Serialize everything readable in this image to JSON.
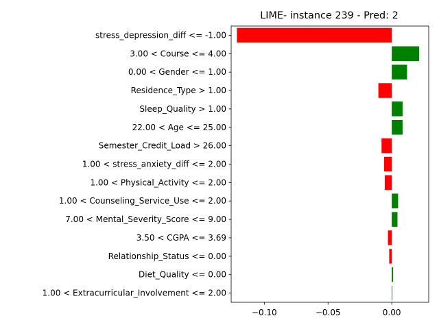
{
  "chart_data": {
    "type": "bar",
    "orientation": "horizontal",
    "title": "LIME- instance 239 - Pred: 2",
    "xlabel": "",
    "ylabel": "",
    "xlim": [
      -0.126,
      0.029
    ],
    "xticks": [
      -0.1,
      -0.05,
      0.0
    ],
    "xtick_labels": [
      "−0.10",
      "−0.05",
      "0.00"
    ],
    "grid": false,
    "colors": {
      "positive": "#008000",
      "negative": "#ff0000"
    },
    "categories": [
      "stress_depression_diff <= -1.00",
      "3.00 < Course <= 4.00",
      "0.00 < Gender <= 1.00",
      "Residence_Type > 1.00",
      "Sleep_Quality > 1.00",
      "22.00 < Age <= 25.00",
      "Semester_Credit_Load > 26.00",
      "1.00 < stress_anxiety_diff <= 2.00",
      "1.00 < Physical_Activity <= 2.00",
      "1.00 < Counseling_Service_Use <= 2.00",
      "7.00 < Mental_Severity_Score <= 9.00",
      "3.50 < CGPA <= 3.69",
      "Relationship_Status <= 0.00",
      "Diet_Quality <= 0.00",
      "1.00 < Extracurricular_Involvement <= 2.00"
    ],
    "values": [
      -0.1215,
      0.0215,
      0.012,
      -0.0105,
      0.0085,
      0.0085,
      -0.008,
      -0.006,
      -0.0055,
      0.005,
      0.0045,
      -0.003,
      -0.002,
      0.001,
      0.0005
    ]
  }
}
